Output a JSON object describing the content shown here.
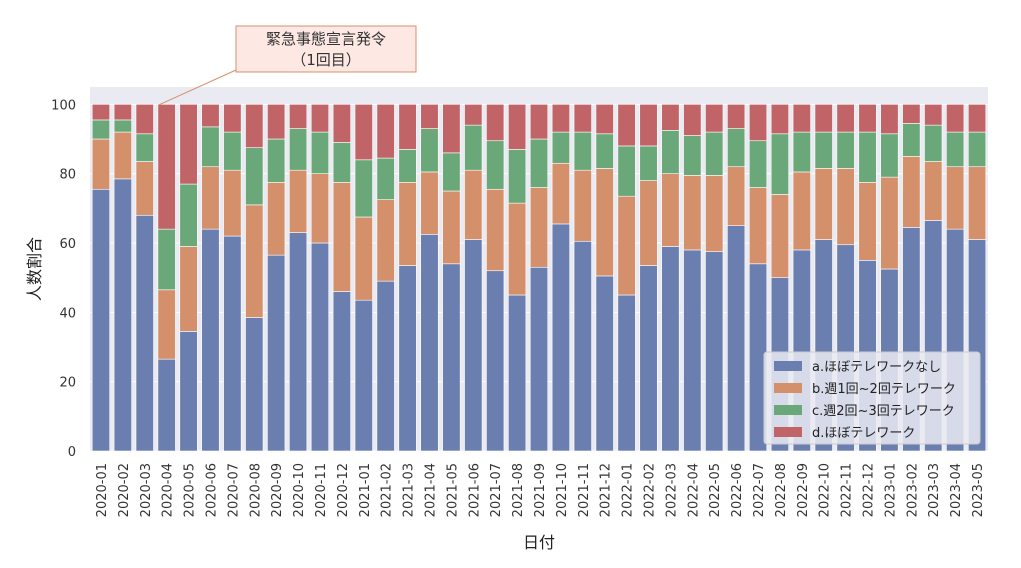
{
  "chart_data": {
    "type": "bar",
    "stacked": true,
    "xlabel": "日付",
    "ylabel": "人数割合",
    "ylim": [
      0,
      105
    ],
    "yticks": [
      0,
      20,
      40,
      60,
      80,
      100
    ],
    "grid": true,
    "legend_position": "bottom-right",
    "colors": [
      "#6a7faf",
      "#d4906b",
      "#6aa87a",
      "#c06468"
    ],
    "annotation": {
      "line1": "緊急事態宣言発令",
      "line2": "（1回目）",
      "target_category": "2020-04"
    },
    "categories": [
      "2020-01",
      "2020-02",
      "2020-03",
      "2020-04",
      "2020-05",
      "2020-06",
      "2020-07",
      "2020-08",
      "2020-09",
      "2020-10",
      "2020-11",
      "2020-12",
      "2021-01",
      "2021-02",
      "2021-03",
      "2021-04",
      "2021-05",
      "2021-06",
      "2021-07",
      "2021-08",
      "2021-09",
      "2021-10",
      "2021-11",
      "2021-12",
      "2022-01",
      "2022-02",
      "2022-03",
      "2022-04",
      "2022-05",
      "2022-06",
      "2022-07",
      "2022-08",
      "2022-09",
      "2022-10",
      "2022-11",
      "2022-12",
      "2023-01",
      "2023-02",
      "2023-03",
      "2023-04",
      "2023-05"
    ],
    "series": [
      {
        "name": "a.ほぼテレワークなし",
        "values": [
          75.5,
          78.5,
          68,
          26.5,
          34.5,
          64,
          62,
          38.5,
          56.5,
          63,
          60,
          46,
          43.5,
          49,
          53.5,
          62.5,
          54,
          61,
          52,
          45,
          53,
          65.5,
          60.5,
          50.5,
          45,
          53.5,
          59,
          58,
          57.5,
          65,
          54,
          50,
          58,
          61,
          59.5,
          55,
          52.5,
          64.5,
          66.5,
          64,
          61
        ]
      },
      {
        "name": "b.週1回~2回テレワーク",
        "values": [
          14.5,
          13.5,
          15.5,
          20,
          24.5,
          18,
          19,
          32.5,
          21,
          18,
          20,
          31.5,
          24,
          23.5,
          24,
          18,
          21,
          20,
          23.5,
          26.5,
          23,
          17.5,
          20.5,
          31,
          28.5,
          24.5,
          21,
          21.5,
          22,
          17,
          22,
          24,
          22.5,
          20.5,
          22,
          22.5,
          26.5,
          20.5,
          17,
          18,
          21
        ]
      },
      {
        "name": "c.週2回~3回テレワーク",
        "values": [
          5.5,
          3.5,
          8,
          17.5,
          18,
          11.5,
          11,
          16.5,
          12.5,
          12,
          12,
          11.5,
          16.5,
          12,
          9.5,
          12.5,
          11,
          13,
          14,
          15.5,
          14,
          9,
          11,
          10,
          14.5,
          10,
          12.5,
          11.5,
          12.5,
          11,
          13.5,
          17.5,
          11.5,
          10.5,
          10.5,
          14.5,
          12.5,
          9.5,
          10.5,
          10,
          10
        ]
      },
      {
        "name": "d.ほぼテレワーク",
        "values": [
          4.5,
          4.5,
          8.5,
          36,
          23,
          6.5,
          8,
          12.5,
          10,
          7,
          8,
          11,
          16,
          15.5,
          13,
          7,
          14,
          6,
          10.5,
          13,
          10,
          8,
          8,
          8.5,
          12,
          12,
          7.5,
          9,
          8,
          7,
          10.5,
          8.5,
          8,
          8,
          8,
          8,
          8.5,
          5.5,
          6,
          8,
          8
        ]
      }
    ]
  }
}
